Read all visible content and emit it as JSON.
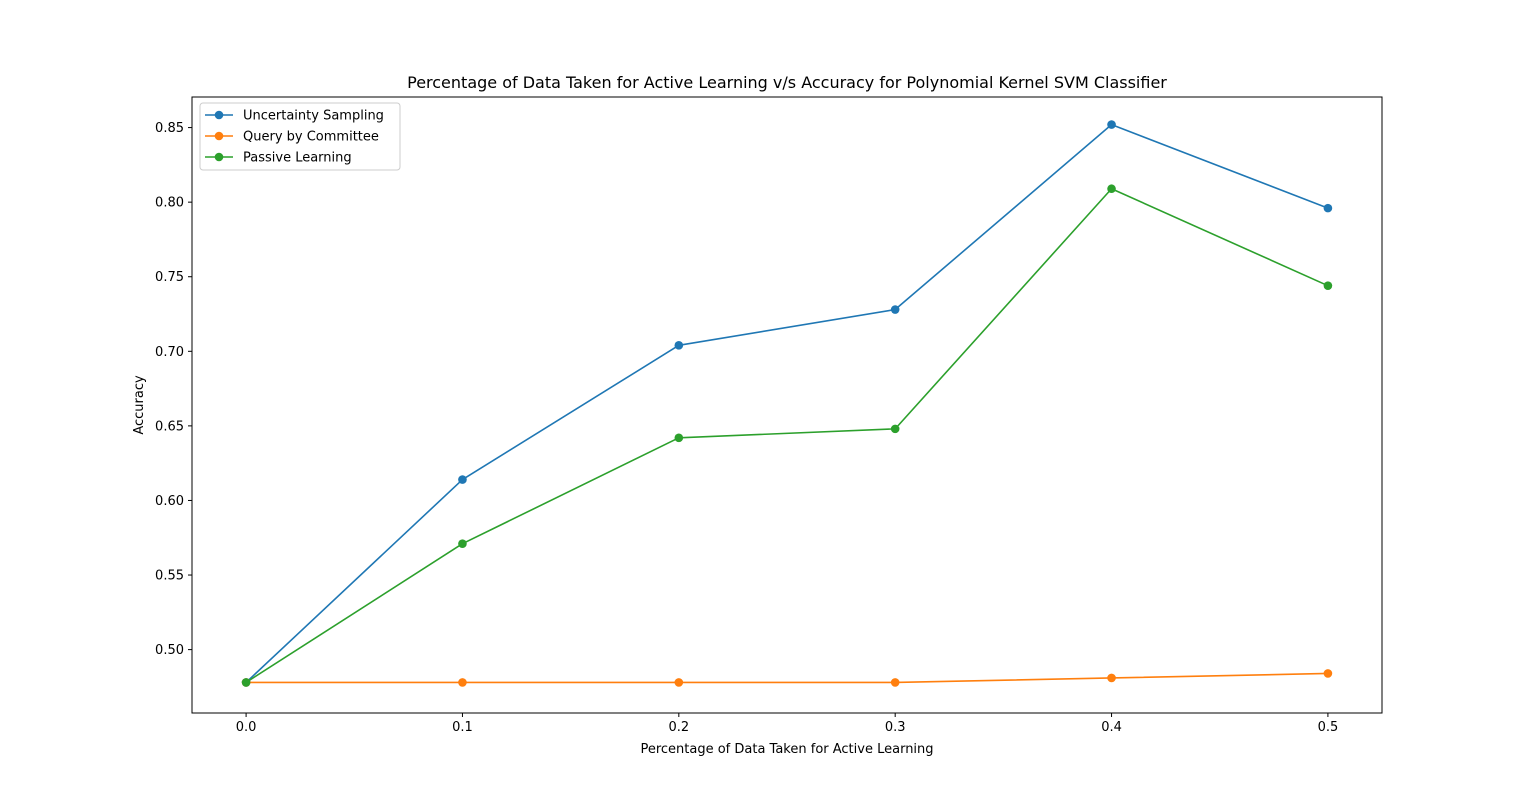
{
  "chart_data": {
    "type": "line",
    "title": "Percentage of Data Taken for Active Learning v/s Accuracy for Polynomial Kernel SVM Classifier",
    "xlabel": "Percentage of Data Taken for Active Learning",
    "ylabel": "Accuracy",
    "x": [
      0.0,
      0.1,
      0.2,
      0.3,
      0.4,
      0.5
    ],
    "x_ticks": [
      "0.0",
      "0.1",
      "0.2",
      "0.3",
      "0.4",
      "0.5"
    ],
    "y_ticks": [
      "0.50",
      "0.55",
      "0.60",
      "0.65",
      "0.70",
      "0.75",
      "0.80",
      "0.85"
    ],
    "xlim": [
      -0.025,
      0.525
    ],
    "ylim": [
      0.4575,
      0.8705
    ],
    "grid": false,
    "legend_position": "upper-left",
    "series": [
      {
        "name": "Uncertainty Sampling",
        "color": "#1f77b4",
        "values": [
          0.478,
          0.614,
          0.704,
          0.728,
          0.852,
          0.796
        ]
      },
      {
        "name": "Query by Committee",
        "color": "#ff7f0e",
        "values": [
          0.478,
          0.478,
          0.478,
          0.478,
          0.481,
          0.484
        ]
      },
      {
        "name": "Passive Learning",
        "color": "#2ca02c",
        "values": [
          0.478,
          0.571,
          0.642,
          0.648,
          0.809,
          0.744
        ]
      }
    ]
  }
}
